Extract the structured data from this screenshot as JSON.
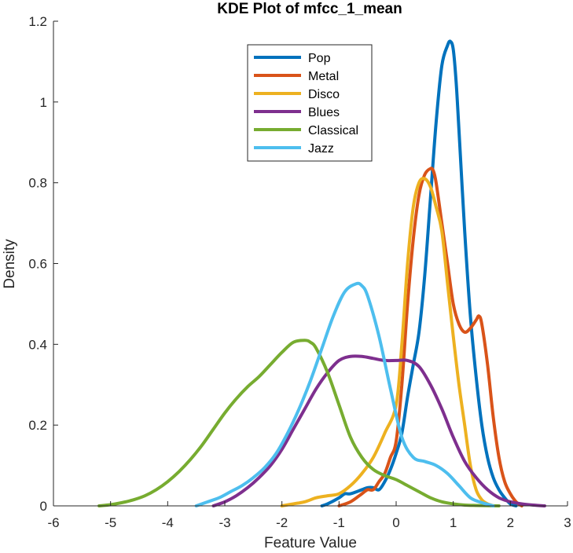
{
  "chart_data": {
    "type": "line",
    "title": "KDE Plot of mfcc_1_mean",
    "xlabel": "Feature Value",
    "ylabel": "Density",
    "xlim": [
      -6,
      3
    ],
    "ylim": [
      0,
      1.2
    ],
    "xticks": [
      -6,
      -5,
      -4,
      -3,
      -2,
      -1,
      0,
      1,
      2,
      3
    ],
    "yticks": [
      0,
      0.2,
      0.4,
      0.6,
      0.8,
      1,
      1.2
    ],
    "ytick_labels": [
      "0",
      "0.2",
      "0.4",
      "0.6",
      "0.8",
      "1",
      "1.2"
    ],
    "grid": false,
    "legend_position": "top-center",
    "series": [
      {
        "name": "Pop",
        "color": "#0072BD",
        "x": [
          -1.3,
          -1.2,
          -1.0,
          -0.9,
          -0.8,
          -0.6,
          -0.5,
          -0.4,
          -0.3,
          -0.2,
          -0.1,
          0.0,
          0.1,
          0.2,
          0.3,
          0.4,
          0.5,
          0.6,
          0.7,
          0.8,
          0.9,
          0.95,
          1.0,
          1.05,
          1.1,
          1.2,
          1.3,
          1.4,
          1.5,
          1.6,
          1.7,
          1.8,
          1.9,
          2.0,
          2.1
        ],
        "y": [
          0.0,
          0.005,
          0.02,
          0.03,
          0.03,
          0.04,
          0.045,
          0.045,
          0.04,
          0.06,
          0.09,
          0.13,
          0.18,
          0.27,
          0.35,
          0.43,
          0.57,
          0.76,
          0.95,
          1.09,
          1.14,
          1.15,
          1.13,
          1.05,
          0.93,
          0.68,
          0.47,
          0.32,
          0.2,
          0.12,
          0.07,
          0.04,
          0.02,
          0.005,
          0.0
        ]
      },
      {
        "name": "Metal",
        "color": "#D95319",
        "x": [
          -1.0,
          -0.8,
          -0.6,
          -0.5,
          -0.4,
          -0.3,
          -0.2,
          -0.1,
          0.0,
          0.1,
          0.2,
          0.3,
          0.4,
          0.5,
          0.6,
          0.65,
          0.7,
          0.8,
          0.9,
          1.0,
          1.1,
          1.2,
          1.3,
          1.4,
          1.45,
          1.5,
          1.6,
          1.7,
          1.8,
          1.9,
          2.0,
          2.1,
          2.2
        ],
        "y": [
          0.0,
          0.01,
          0.03,
          0.04,
          0.04,
          0.06,
          0.08,
          0.12,
          0.16,
          0.3,
          0.5,
          0.66,
          0.77,
          0.82,
          0.835,
          0.83,
          0.8,
          0.7,
          0.6,
          0.5,
          0.45,
          0.43,
          0.44,
          0.46,
          0.47,
          0.45,
          0.35,
          0.22,
          0.12,
          0.06,
          0.03,
          0.01,
          0.0
        ]
      },
      {
        "name": "Disco",
        "color": "#EDB120",
        "x": [
          -2.0,
          -1.8,
          -1.6,
          -1.4,
          -1.2,
          -1.0,
          -0.8,
          -0.6,
          -0.4,
          -0.2,
          0.0,
          0.1,
          0.2,
          0.3,
          0.4,
          0.5,
          0.6,
          0.7,
          0.8,
          0.9,
          1.0,
          1.1,
          1.2,
          1.3,
          1.4,
          1.5,
          1.6,
          1.7
        ],
        "y": [
          0.0,
          0.005,
          0.01,
          0.02,
          0.025,
          0.03,
          0.05,
          0.08,
          0.12,
          0.18,
          0.25,
          0.4,
          0.6,
          0.74,
          0.8,
          0.81,
          0.79,
          0.74,
          0.68,
          0.55,
          0.42,
          0.3,
          0.2,
          0.1,
          0.04,
          0.015,
          0.005,
          0.0
        ]
      },
      {
        "name": "Blues",
        "color": "#7E2F8E",
        "x": [
          -3.2,
          -3.0,
          -2.8,
          -2.6,
          -2.4,
          -2.2,
          -2.0,
          -1.8,
          -1.6,
          -1.4,
          -1.2,
          -1.0,
          -0.8,
          -0.6,
          -0.4,
          -0.2,
          0.0,
          0.2,
          0.4,
          0.6,
          0.8,
          1.0,
          1.2,
          1.4,
          1.6,
          1.8,
          2.0,
          2.2,
          2.4,
          2.6
        ],
        "y": [
          0.0,
          0.01,
          0.025,
          0.045,
          0.07,
          0.1,
          0.14,
          0.19,
          0.24,
          0.29,
          0.33,
          0.36,
          0.37,
          0.37,
          0.365,
          0.36,
          0.36,
          0.36,
          0.345,
          0.3,
          0.24,
          0.17,
          0.11,
          0.07,
          0.04,
          0.02,
          0.01,
          0.005,
          0.002,
          0.0
        ]
      },
      {
        "name": "Classical",
        "color": "#77AC30",
        "x": [
          -5.2,
          -5.0,
          -4.8,
          -4.6,
          -4.4,
          -4.2,
          -4.0,
          -3.8,
          -3.6,
          -3.4,
          -3.2,
          -3.0,
          -2.8,
          -2.6,
          -2.4,
          -2.2,
          -2.0,
          -1.8,
          -1.6,
          -1.5,
          -1.4,
          -1.2,
          -1.0,
          -0.8,
          -0.6,
          -0.4,
          -0.2,
          0.0,
          0.2,
          0.4,
          0.6,
          0.8,
          1.0,
          1.2,
          1.4,
          1.6,
          1.8
        ],
        "y": [
          0.0,
          0.003,
          0.008,
          0.015,
          0.025,
          0.04,
          0.06,
          0.085,
          0.115,
          0.15,
          0.19,
          0.23,
          0.265,
          0.295,
          0.32,
          0.35,
          0.38,
          0.405,
          0.41,
          0.405,
          0.39,
          0.33,
          0.25,
          0.17,
          0.12,
          0.09,
          0.075,
          0.065,
          0.05,
          0.035,
          0.02,
          0.01,
          0.005,
          0.002,
          0.001,
          0.0005,
          0.0
        ]
      },
      {
        "name": "Jazz",
        "color": "#4DBEEE",
        "x": [
          -3.5,
          -3.3,
          -3.1,
          -2.9,
          -2.7,
          -2.5,
          -2.3,
          -2.1,
          -1.9,
          -1.7,
          -1.5,
          -1.3,
          -1.1,
          -0.9,
          -0.7,
          -0.6,
          -0.5,
          -0.3,
          -0.1,
          0.1,
          0.3,
          0.5,
          0.7,
          0.9,
          1.1,
          1.3,
          1.5,
          1.7
        ],
        "y": [
          0.0,
          0.01,
          0.02,
          0.035,
          0.05,
          0.07,
          0.095,
          0.13,
          0.18,
          0.24,
          0.31,
          0.39,
          0.47,
          0.53,
          0.55,
          0.545,
          0.52,
          0.42,
          0.29,
          0.17,
          0.12,
          0.11,
          0.1,
          0.08,
          0.05,
          0.02,
          0.008,
          0.0
        ]
      }
    ]
  }
}
